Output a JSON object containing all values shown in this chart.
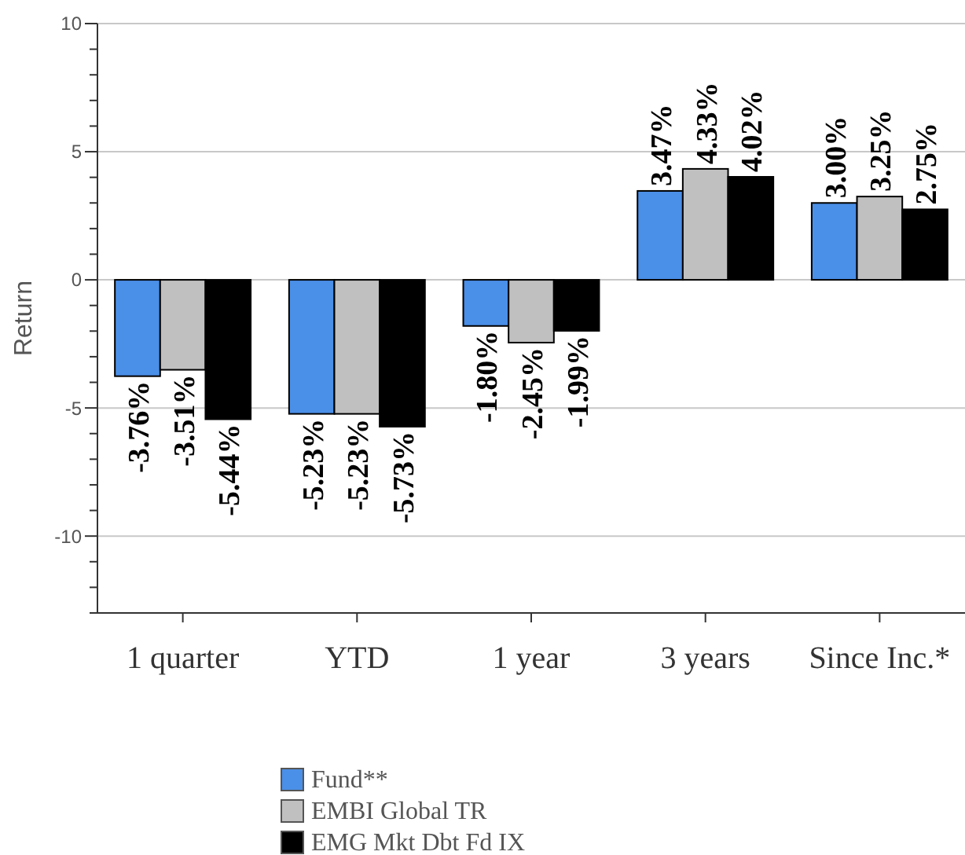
{
  "chart_data": {
    "type": "bar",
    "ylabel": "Return",
    "categories": [
      "1 quarter",
      "YTD",
      "1 year",
      "3 years",
      "Since Inc.*"
    ],
    "series": [
      {
        "name": "Fund**",
        "color": "#4a8fe8",
        "values": [
          -3.76,
          -5.23,
          -1.8,
          3.47,
          3.0
        ],
        "value_labels": [
          "-3.76%",
          "-5.23%",
          "-1.80%",
          "3.47%",
          "3.00%"
        ]
      },
      {
        "name": "EMBI Global TR",
        "color": "#c0c0c0",
        "values": [
          -3.51,
          -5.23,
          -2.45,
          4.33,
          3.25
        ],
        "value_labels": [
          "-3.51%",
          "-5.23%",
          "-2.45%",
          "4.33%",
          "3.25%"
        ]
      },
      {
        "name": "EMG Mkt Dbt Fd IX",
        "color": "#000000",
        "values": [
          -5.44,
          -5.73,
          -1.99,
          4.02,
          2.75
        ],
        "value_labels": [
          "-5.44%",
          "-5.73%",
          "-1.99%",
          "4.02%",
          "2.75%"
        ]
      }
    ],
    "ylim": [
      -13,
      10
    ],
    "yticks": [
      {
        "value": -13,
        "label": null
      },
      {
        "value": -12,
        "label": null
      },
      {
        "value": -11,
        "label": null
      },
      -10,
      {
        "value": -9,
        "label": null
      },
      {
        "value": -8,
        "label": null
      },
      {
        "value": -7,
        "label": null
      },
      {
        "value": -6,
        "label": null
      },
      -5,
      {
        "value": -4,
        "label": null
      },
      {
        "value": -3,
        "label": null
      },
      {
        "value": -2,
        "label": null
      },
      {
        "value": -1,
        "label": null
      },
      0,
      {
        "value": 1,
        "label": null
      },
      {
        "value": 2,
        "label": null
      },
      {
        "value": 3,
        "label": null
      },
      {
        "value": 4,
        "label": null
      },
      5,
      {
        "value": 6,
        "label": null
      },
      {
        "value": 7,
        "label": null
      },
      {
        "value": 8,
        "label": null
      },
      {
        "value": 9,
        "label": null
      },
      10
    ],
    "grid": "y",
    "legend": "bottom"
  }
}
